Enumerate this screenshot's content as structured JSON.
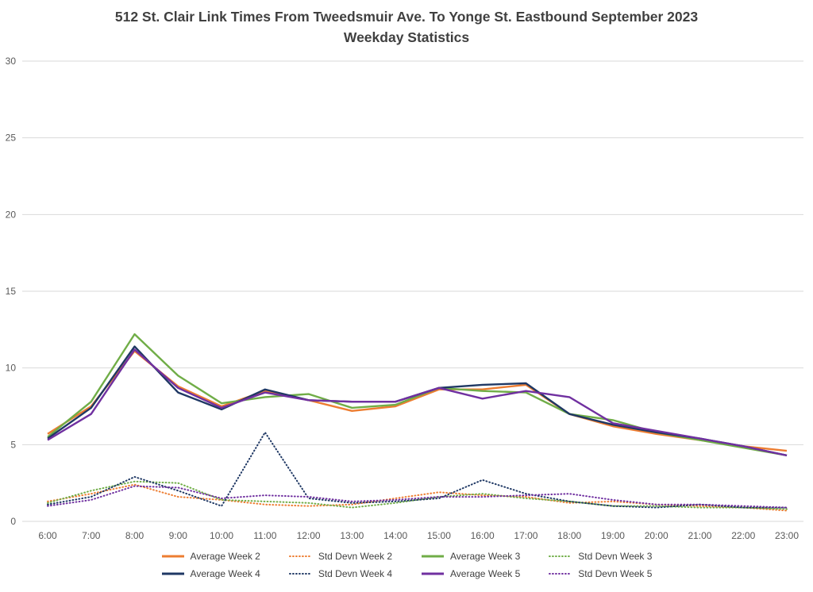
{
  "chart_data": {
    "type": "line",
    "title": "512 St. Clair Link Times From Tweedsmuir Ave. To Yonge St. Eastbound September 2023",
    "subtitle": "Weekday Statistics",
    "x_tick_labels": [
      "6:00",
      "7:00",
      "8:00",
      "9:00",
      "10:00",
      "11:00",
      "12:00",
      "13:00",
      "14:00",
      "15:00",
      "16:00",
      "17:00",
      "18:00",
      "19:00",
      "20:00",
      "21:00",
      "22:00",
      "23:00"
    ],
    "y_ticks": [
      0,
      5,
      10,
      15,
      20,
      25,
      30
    ],
    "ylim": [
      0,
      30
    ],
    "grid": "horizontal",
    "legend_position": "bottom",
    "colors": {
      "title": "#404040",
      "axis_labels": "#595959",
      "gridlines": "#D9D9D9",
      "week2": "#ED7D31",
      "week3": "#70AD47",
      "week4": "#1F3864",
      "week5": "#7030A0"
    },
    "series": [
      {
        "name": "Average Week 2",
        "color": "#ED7D31",
        "style": "solid",
        "values": [
          5.7,
          7.5,
          11.1,
          8.8,
          7.5,
          8.5,
          7.9,
          7.2,
          7.5,
          8.6,
          8.6,
          8.9,
          7.0,
          6.2,
          5.7,
          5.3,
          4.9,
          4.6
        ]
      },
      {
        "name": "Std Devn Week 2",
        "color": "#ED7D31",
        "style": "dotted",
        "values": [
          1.3,
          1.8,
          2.4,
          1.6,
          1.4,
          1.1,
          1.0,
          1.1,
          1.5,
          1.9,
          1.7,
          1.6,
          1.2,
          1.3,
          1.1,
          1.0,
          0.9,
          0.7
        ]
      },
      {
        "name": "Average Week 3",
        "color": "#70AD47",
        "style": "solid",
        "values": [
          5.5,
          7.8,
          12.2,
          9.5,
          7.7,
          8.1,
          8.3,
          7.4,
          7.6,
          8.7,
          8.5,
          8.4,
          7.0,
          6.6,
          5.8,
          5.3,
          4.8,
          4.3
        ]
      },
      {
        "name": "Std Devn Week 3",
        "color": "#70AD47",
        "style": "dotted",
        "values": [
          1.2,
          2.0,
          2.6,
          2.5,
          1.4,
          1.3,
          1.2,
          0.9,
          1.2,
          1.6,
          1.8,
          1.5,
          1.3,
          1.0,
          1.0,
          0.9,
          0.9,
          0.8
        ]
      },
      {
        "name": "Average Week 4",
        "color": "#1F3864",
        "style": "solid",
        "values": [
          5.4,
          7.4,
          11.4,
          8.4,
          7.3,
          8.6,
          7.9,
          7.8,
          7.8,
          8.7,
          8.9,
          9.0,
          7.0,
          6.3,
          5.8,
          5.4,
          4.9,
          4.3
        ]
      },
      {
        "name": "Std Devn Week 4",
        "color": "#1F3864",
        "style": "dotted",
        "values": [
          1.1,
          1.6,
          2.9,
          2.0,
          1.0,
          5.8,
          1.5,
          1.2,
          1.3,
          1.5,
          2.7,
          1.8,
          1.3,
          1.0,
          0.9,
          1.1,
          0.9,
          0.9
        ]
      },
      {
        "name": "Average Week 5",
        "color": "#7030A0",
        "style": "solid",
        "values": [
          5.3,
          7.0,
          11.2,
          8.7,
          7.4,
          8.4,
          7.9,
          7.8,
          7.8,
          8.7,
          8.0,
          8.5,
          8.1,
          6.4,
          5.9,
          5.4,
          4.9,
          4.3
        ]
      },
      {
        "name": "Std Devn Week 5",
        "color": "#7030A0",
        "style": "dotted",
        "values": [
          1.0,
          1.4,
          2.3,
          2.2,
          1.5,
          1.7,
          1.6,
          1.3,
          1.4,
          1.6,
          1.6,
          1.7,
          1.8,
          1.4,
          1.1,
          1.1,
          1.0,
          0.9
        ]
      }
    ]
  }
}
